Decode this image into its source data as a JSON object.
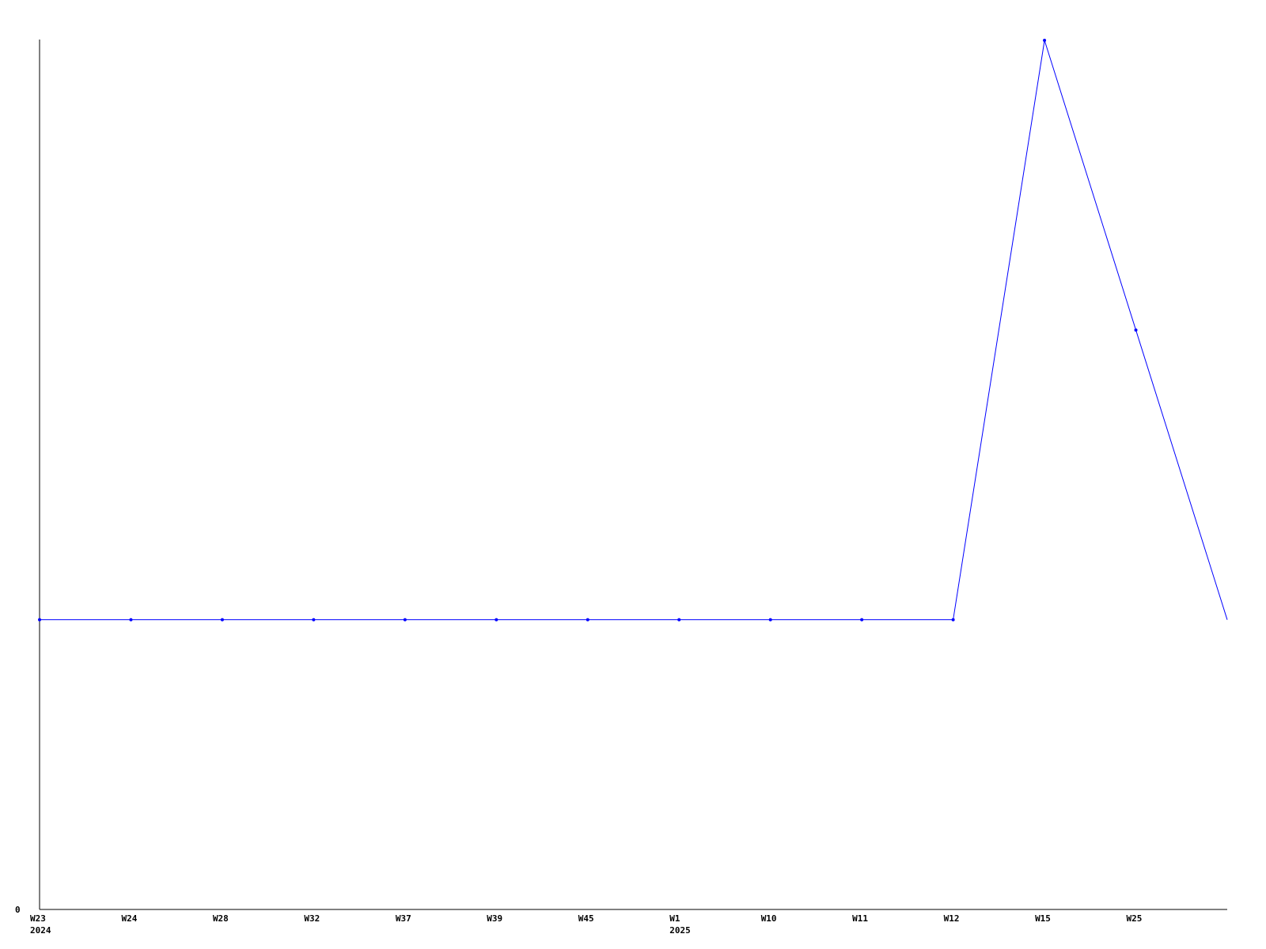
{
  "chart_data": {
    "type": "line",
    "title": "",
    "xlabel": "",
    "ylabel": "",
    "categories": [
      "W23",
      "W24",
      "W28",
      "W32",
      "W37",
      "W39",
      "W45",
      "W1",
      "W10",
      "W11",
      "W12",
      "W15",
      "W25",
      ""
    ],
    "year_labels": [
      {
        "index": 0,
        "label": "2024"
      },
      {
        "index": 7,
        "label": "2025"
      }
    ],
    "y_tick_labels": [
      "0"
    ],
    "ylim": [
      0,
      3
    ],
    "grid": false,
    "series": [
      {
        "values": [
          1,
          1,
          1,
          1,
          1,
          1,
          1,
          1,
          1,
          1,
          1,
          3,
          2,
          1
        ],
        "color": "#0000ff"
      }
    ]
  }
}
